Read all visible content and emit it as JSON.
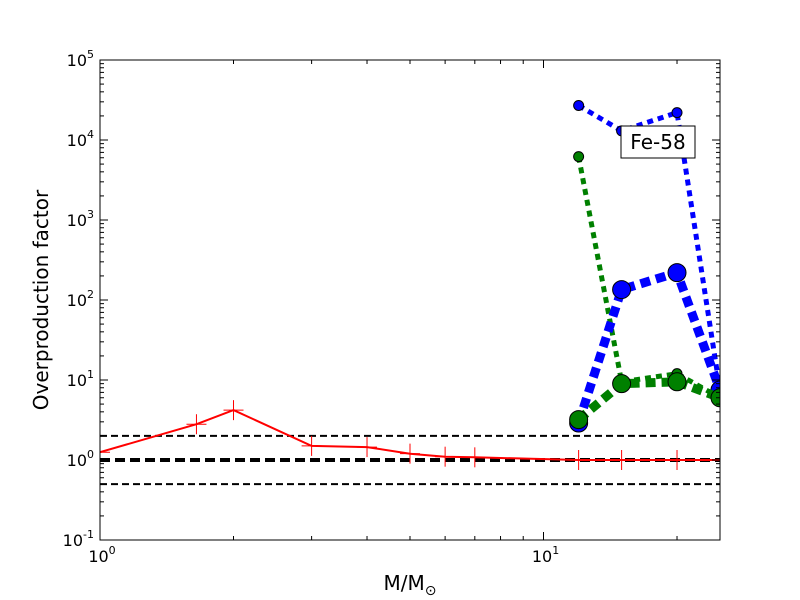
{
  "chart_data": {
    "type": "line",
    "title": "",
    "xlabel": "M/M",
    "xlabel_subscript": "⊙",
    "ylabel": "Overproduction factor",
    "xscale": "log",
    "yscale": "log",
    "xlim": [
      1,
      25
    ],
    "ylim": [
      0.1,
      100000
    ],
    "x_ticks": [
      {
        "value": 1,
        "base": "10",
        "exp": "0"
      },
      {
        "value": 10,
        "base": "10",
        "exp": "1"
      }
    ],
    "y_ticks": [
      {
        "value": 0.1,
        "base": "10",
        "exp": "-1"
      },
      {
        "value": 1,
        "base": "10",
        "exp": "0"
      },
      {
        "value": 10,
        "base": "10",
        "exp": "1"
      },
      {
        "value": 100,
        "base": "10",
        "exp": "2"
      },
      {
        "value": 1000,
        "base": "10",
        "exp": "3"
      },
      {
        "value": 10000,
        "base": "10",
        "exp": "4"
      },
      {
        "value": 100000,
        "base": "10",
        "exp": "5"
      }
    ],
    "reference_lines": [
      {
        "y": 2,
        "style": "dashed",
        "color": "#000000",
        "weight": "thin"
      },
      {
        "y": 1,
        "style": "dashed",
        "color": "#000000",
        "weight": "thick"
      },
      {
        "y": 0.5,
        "style": "dashed",
        "color": "#000000",
        "weight": "thin"
      }
    ],
    "annotation": "Fe-58",
    "series": [
      {
        "color": "#ff0000",
        "style": "solid",
        "marker": "plus",
        "x": [
          1,
          1.65,
          2,
          3,
          4,
          5,
          6,
          7,
          12,
          15,
          20,
          25
        ],
        "y": [
          1.25,
          2.8,
          4.2,
          1.5,
          1.45,
          1.2,
          1.1,
          1.08,
          1.0,
          1.0,
          1.0,
          1.0
        ]
      },
      {
        "color": "#0000ff",
        "style": "dotted",
        "marker": "circle",
        "weight": "thin",
        "x": [
          12,
          15,
          20,
          25
        ],
        "y": [
          27000,
          13000,
          22000,
          7.5
        ]
      },
      {
        "color": "#008000",
        "style": "dotted",
        "marker": "circle",
        "weight": "thin",
        "x": [
          12,
          15,
          20,
          25
        ],
        "y": [
          6200,
          9.5,
          12,
          6
        ]
      },
      {
        "color": "#0000ff",
        "style": "dotted",
        "marker": "circle",
        "weight": "thick",
        "x": [
          12,
          15,
          20,
          25
        ],
        "y": [
          2.9,
          135,
          220,
          7.5
        ]
      },
      {
        "color": "#008000",
        "style": "dotted",
        "marker": "circle",
        "weight": "thick",
        "x": [
          12,
          15,
          20,
          25
        ],
        "y": [
          3.2,
          9,
          9.5,
          6
        ]
      }
    ]
  }
}
